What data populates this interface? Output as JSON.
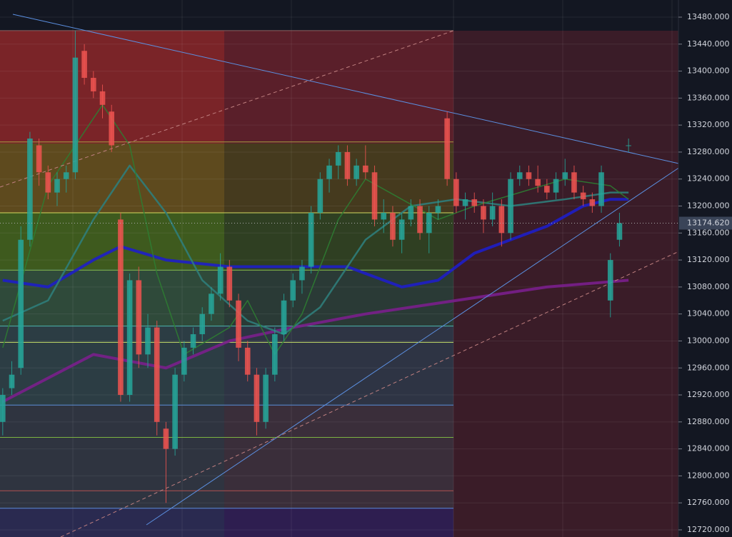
{
  "chart_data": {
    "type": "candlestick",
    "ylim": [
      12709.4,
      13505.4
    ],
    "xlim": [
      -0.3,
      74.5
    ],
    "yticks": [
      {
        "value": 12720,
        "label": "12720.000"
      },
      {
        "value": 12760,
        "label": "12760.000"
      },
      {
        "value": 12800,
        "label": "12800.000"
      },
      {
        "value": 12840,
        "label": "12840.000"
      },
      {
        "value": 12880,
        "label": "12880.000"
      },
      {
        "value": 12920,
        "label": "12920.000"
      },
      {
        "value": 12960,
        "label": "12960.000"
      },
      {
        "value": 13000,
        "label": "13000.000"
      },
      {
        "value": 13040,
        "label": "13040.000"
      },
      {
        "value": 13080,
        "label": "13080.000"
      },
      {
        "value": 13120,
        "label": "13120.000"
      },
      {
        "value": 13160,
        "label": "13160.000"
      },
      {
        "value": 13200,
        "label": "13200.000"
      },
      {
        "value": 13240,
        "label": "13240.000"
      },
      {
        "value": 13280,
        "label": "13280.000"
      },
      {
        "value": 13320,
        "label": "13320.000"
      },
      {
        "value": 13360,
        "label": "13360.000"
      },
      {
        "value": 13400,
        "label": "13400.000"
      },
      {
        "value": 13440,
        "label": "13440.000"
      },
      {
        "value": 13480,
        "label": "13480.000"
      }
    ],
    "grid": true,
    "up_color": "#26a69a",
    "down_color": "#ef5350",
    "open": [
      12880,
      12930,
      12960,
      13150,
      13290,
      13250,
      13220,
      13240,
      13250,
      13430,
      13390,
      13370,
      13340,
      13180,
      12920,
      13090,
      12980,
      13020,
      12870,
      12840,
      12950,
      12990,
      13010,
      13040,
      13070,
      13110,
      13060,
      12990,
      12950,
      12880,
      12950,
      13010,
      13060,
      13090,
      13110,
      13190,
      13240,
      13260,
      13280,
      13240,
      13260,
      13250,
      13180,
      13190,
      13150,
      13180,
      13200,
      13160,
      13190,
      13330,
      13240,
      13200,
      13210,
      13200,
      13180,
      13200,
      13160,
      13240,
      13250,
      13240,
      13230,
      13220,
      13240,
      13250,
      13220,
      13210,
      13200,
      13060,
      13150,
      13290
    ],
    "high": [
      12930,
      12970,
      13170,
      13310,
      13300,
      13260,
      13250,
      13260,
      13460,
      13440,
      13400,
      13380,
      13350,
      13190,
      13100,
      13110,
      13040,
      13030,
      12880,
      12960,
      13000,
      13020,
      13050,
      13080,
      13130,
      13120,
      13070,
      13000,
      12960,
      12960,
      13020,
      13070,
      13100,
      13120,
      13200,
      13250,
      13270,
      13290,
      13290,
      13270,
      13290,
      13260,
      13210,
      13200,
      13190,
      13210,
      13210,
      13200,
      13210,
      13340,
      13250,
      13220,
      13220,
      13210,
      13220,
      13210,
      13250,
      13260,
      13260,
      13260,
      13240,
      13250,
      13270,
      13260,
      13230,
      13220,
      13260,
      13130,
      13190,
      13300
    ],
    "low": [
      12860,
      12920,
      12950,
      13140,
      13230,
      13210,
      13200,
      13220,
      13240,
      13380,
      13360,
      13330,
      13280,
      12910,
      12910,
      12960,
      12960,
      12860,
      12760,
      12830,
      12940,
      12980,
      13000,
      13030,
      13060,
      13050,
      12970,
      12940,
      12860,
      12870,
      12940,
      13000,
      13050,
      13070,
      13100,
      13180,
      13220,
      13240,
      13230,
      13230,
      13240,
      13170,
      13160,
      13140,
      13130,
      13170,
      13150,
      13130,
      13180,
      13230,
      13190,
      13180,
      13190,
      13160,
      13170,
      13140,
      13150,
      13230,
      13230,
      13220,
      13210,
      13210,
      13230,
      13210,
      13200,
      13190,
      13190,
      13035,
      13140,
      13280
    ],
    "close": [
      12920,
      12950,
      13150,
      13300,
      13250,
      13220,
      13240,
      13250,
      13420,
      13390,
      13370,
      13350,
      13290,
      12920,
      13090,
      12980,
      13020,
      12880,
      12840,
      12950,
      12990,
      13010,
      13040,
      13070,
      13110,
      13060,
      12990,
      12950,
      12880,
      12950,
      13010,
      13060,
      13090,
      13110,
      13190,
      13240,
      13260,
      13280,
      13240,
      13260,
      13250,
      13180,
      13190,
      13150,
      13180,
      13200,
      13160,
      13190,
      13200,
      13240,
      13200,
      13210,
      13200,
      13180,
      13200,
      13160,
      13240,
      13250,
      13240,
      13230,
      13220,
      13240,
      13250,
      13220,
      13210,
      13200,
      13250,
      13120,
      13174.62,
      13290
    ],
    "series": [
      {
        "color": "#1e1ec8",
        "width": 4,
        "x": [
          0,
          5,
          10,
          13,
          18,
          25,
          32,
          38,
          44,
          48,
          52,
          56,
          60,
          64,
          67,
          69
        ],
        "values": [
          13090,
          13080,
          13120,
          13140,
          13120,
          13110,
          13110,
          13110,
          13080,
          13090,
          13130,
          13150,
          13170,
          13200,
          13210,
          13210
        ]
      },
      {
        "color": "#7a1f8c",
        "width": 4,
        "x": [
          0,
          10,
          18,
          25,
          32,
          40,
          50,
          60,
          69
        ],
        "values": [
          12910,
          12980,
          12960,
          13000,
          13020,
          13040,
          13060,
          13080,
          13090
        ]
      },
      {
        "color": "#2f7d7a",
        "width": 2.5,
        "x": [
          0,
          5,
          10,
          14,
          18,
          22,
          27,
          31,
          35,
          40,
          45,
          50,
          56,
          62,
          67,
          69
        ],
        "values": [
          13030,
          13060,
          13180,
          13260,
          13190,
          13090,
          13030,
          13010,
          13050,
          13150,
          13200,
          13210,
          13200,
          13210,
          13220,
          13220
        ]
      },
      {
        "color": "#2e7d32",
        "width": 1.5,
        "x": [
          0,
          5,
          11,
          14,
          17,
          20,
          25,
          27,
          30,
          33,
          37,
          40,
          44,
          48,
          52,
          57,
          62,
          67,
          69
        ],
        "values": [
          12990,
          13230,
          13350,
          13290,
          13100,
          12980,
          13020,
          13060,
          12980,
          13040,
          13180,
          13240,
          13210,
          13180,
          13200,
          13220,
          13240,
          13230,
          13210
        ]
      }
    ],
    "levels": [
      {
        "value": 13460,
        "color": "#8a6060"
      },
      {
        "value": 13295,
        "color": "#a0a040"
      },
      {
        "value": 13190,
        "color": "#d4d860"
      },
      {
        "value": 13105,
        "color": "#8bc34a"
      },
      {
        "value": 13022,
        "color": "#4db6ac"
      },
      {
        "value": 12998,
        "color": "#c8e06a"
      },
      {
        "value": 12905,
        "color": "#5c8bd6"
      },
      {
        "value": 12857,
        "color": "#7cb342"
      },
      {
        "value": 12778,
        "color": "#b05050"
      },
      {
        "value": 12752,
        "color": "#5c8bd6"
      }
    ],
    "last_price": {
      "value": 13174.62,
      "label": "13174.620"
    }
  }
}
